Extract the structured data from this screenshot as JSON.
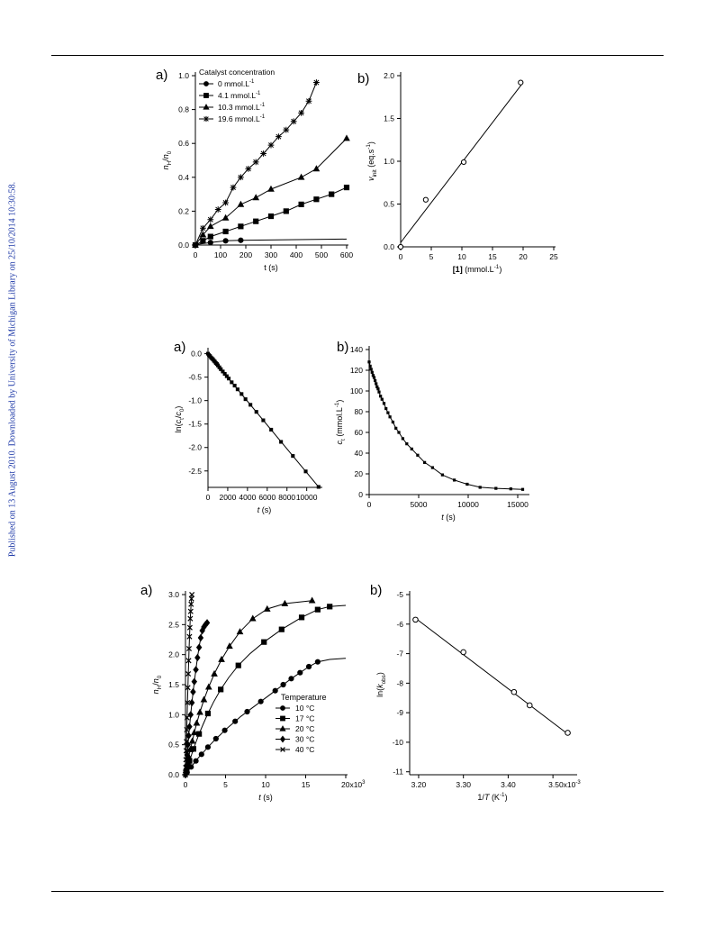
{
  "side_note": "Published on 13 August 2010. Downloaded by University of Michigan Library on 25/10/2014 10:30:58.",
  "chart_data": [
    {
      "id": "fig1a",
      "panel": "a)",
      "type": "line",
      "xlabel_html": "t (s)",
      "ylabel_html": "<tspan font-style='italic'>n</tspan><tspan font-size='70%' dy='3'>H</tspan><tspan dy='-3'>/</tspan><tspan font-style='italic'>n</tspan><tspan font-size='70%' dy='3'>0</tspan>",
      "xlim": [
        0,
        600
      ],
      "ylim": [
        0,
        1.0
      ],
      "xticks": [
        0,
        100,
        200,
        300,
        400,
        500,
        600
      ],
      "yticks": [
        0.0,
        0.2,
        0.4,
        0.6,
        0.8,
        1.0
      ],
      "xtick_labels": [
        "0",
        "100",
        "200",
        "300",
        "400",
        "500",
        "600"
      ],
      "ytick_labels": [
        "0.0",
        "0.2",
        "0.4",
        "0.6",
        "0.8",
        "1.0"
      ],
      "legend": {
        "title": "Catalyst concentration",
        "placement": "top-left"
      },
      "series": [
        {
          "name": "0 mmol.L",
          "unit_sup": "-1",
          "marker": "circle",
          "x": [
            0,
            10,
            60,
            120,
            180,
            600
          ],
          "y": [
            0.0,
            0.005,
            0.015,
            0.025,
            0.028,
            0.035
          ],
          "mx": [
            0,
            60,
            120,
            180
          ],
          "my": [
            0.0,
            0.015,
            0.025,
            0.028
          ]
        },
        {
          "name": "4.1 mmol.L",
          "unit_sup": "-1",
          "marker": "square",
          "x": [
            0,
            30,
            60,
            120,
            180,
            240,
            300,
            360,
            420,
            480,
            540,
            600
          ],
          "y": [
            0.0,
            0.025,
            0.05,
            0.08,
            0.11,
            0.14,
            0.17,
            0.2,
            0.24,
            0.27,
            0.3,
            0.34
          ]
        },
        {
          "name": "10.3 mmol.L",
          "unit_sup": "-1",
          "marker": "triangle",
          "x": [
            0,
            30,
            60,
            120,
            180,
            240,
            300,
            420,
            480,
            600
          ],
          "y": [
            0.0,
            0.06,
            0.11,
            0.16,
            0.24,
            0.28,
            0.33,
            0.4,
            0.45,
            0.63
          ]
        },
        {
          "name": "19.6 mmol.L",
          "unit_sup": "-1",
          "marker": "plus",
          "x": [
            0,
            30,
            60,
            90,
            120,
            150,
            180,
            210,
            240,
            270,
            300,
            330,
            360,
            390,
            420,
            450,
            480
          ],
          "y": [
            0.0,
            0.1,
            0.15,
            0.21,
            0.25,
            0.34,
            0.4,
            0.45,
            0.49,
            0.54,
            0.59,
            0.64,
            0.68,
            0.73,
            0.78,
            0.85,
            0.96
          ]
        }
      ]
    },
    {
      "id": "fig1b",
      "panel": "b)",
      "type": "scatter",
      "xlabel_html": "<tspan font-weight='bold'>[1]</tspan> (mmol.L<tspan font-size='70%' dy='-4'>-1</tspan><tspan dy='4'>)</tspan>",
      "ylabel_html": "<tspan font-style='italic'>v</tspan><tspan font-size='70%' dy='3'>init</tspan><tspan dy='-3'> (eq.s</tspan><tspan font-size='70%' dy='-4'>-1</tspan><tspan dy='4'>)</tspan>",
      "xlim": [
        0,
        25
      ],
      "ylim": [
        0,
        2.0
      ],
      "xticks": [
        0,
        5,
        10,
        15,
        20,
        25
      ],
      "yticks": [
        0.0,
        0.5,
        1.0,
        1.5,
        2.0
      ],
      "xtick_labels": [
        "0",
        "5",
        "10",
        "15",
        "20",
        "25"
      ],
      "ytick_labels": [
        "0.0",
        "0.5",
        "1.0",
        "1.5",
        "2.0"
      ],
      "fit": {
        "x": [
          0,
          20
        ],
        "y": [
          0.05,
          1.92
        ]
      },
      "series": [
        {
          "name": "",
          "marker": "open-circle",
          "x": [
            0,
            4.1,
            10.3,
            19.6
          ],
          "y": [
            0.0,
            0.55,
            0.99,
            1.92
          ]
        }
      ]
    },
    {
      "id": "fig2a",
      "panel": "a)",
      "type": "scatter",
      "xlabel_html": "<tspan font-style='italic'>t</tspan> (s)",
      "ylabel_html": "ln(<tspan font-style='italic'>c</tspan><tspan font-size='70%' dy='3'>t</tspan><tspan dy='-3'>/</tspan><tspan font-style='italic'>c</tspan><tspan font-size='70%' dy='3'>0</tspan><tspan dy='-3'>)</tspan>",
      "xlim": [
        0,
        11400
      ],
      "ylim": [
        -2.85,
        0.05
      ],
      "xticks": [
        0,
        2000,
        4000,
        6000,
        8000,
        10000
      ],
      "yticks": [
        0.0,
        -0.5,
        -1.0,
        -1.5,
        -2.0,
        -2.5
      ],
      "xtick_labels": [
        "0",
        "2000",
        "4000",
        "6000",
        "8000",
        "10000"
      ],
      "ytick_labels": [
        "0.0",
        "-0.5",
        "-1.0",
        "-1.5",
        "-2.0",
        "-2.5"
      ],
      "fit": {
        "x": [
          0,
          11200
        ],
        "y": [
          0.0,
          -2.84
        ]
      },
      "series": [
        {
          "name": "",
          "marker": "small-square",
          "x": [
            0,
            100,
            200,
            300,
            400,
            500,
            600,
            700,
            800,
            900,
            1000,
            1150,
            1300,
            1500,
            1700,
            1900,
            2100,
            2400,
            2700,
            3000,
            3400,
            3800,
            4300,
            4900,
            5600,
            6400,
            7400,
            8600,
            9900,
            11200
          ],
          "y": [
            0.0,
            -0.03,
            -0.05,
            -0.08,
            -0.1,
            -0.12,
            -0.15,
            -0.17,
            -0.2,
            -0.22,
            -0.25,
            -0.29,
            -0.33,
            -0.38,
            -0.43,
            -0.48,
            -0.53,
            -0.61,
            -0.68,
            -0.76,
            -0.86,
            -0.97,
            -1.09,
            -1.24,
            -1.42,
            -1.62,
            -1.88,
            -2.18,
            -2.51,
            -2.84
          ]
        }
      ]
    },
    {
      "id": "fig2b",
      "panel": "b)",
      "type": "line",
      "xlabel_html": "<tspan font-style='italic'>t</tspan> (s)",
      "ylabel_html": "<tspan font-style='italic'>c</tspan><tspan font-size='70%' dy='3'>t</tspan><tspan dy='-3'> (mmol.L</tspan><tspan font-size='70%' dy='-4'>-1</tspan><tspan dy='4'>)</tspan>",
      "xlim": [
        0,
        16000
      ],
      "ylim": [
        0,
        140
      ],
      "xticks": [
        0,
        5000,
        10000,
        15000
      ],
      "yticks": [
        0,
        20,
        40,
        60,
        80,
        100,
        120,
        140
      ],
      "xtick_labels": [
        "0",
        "5000",
        "10000",
        "15000"
      ],
      "ytick_labels": [
        "0",
        "20",
        "40",
        "60",
        "80",
        "100",
        "120",
        "140"
      ],
      "series": [
        {
          "name": "",
          "marker": "small-square",
          "x": [
            0,
            100,
            200,
            300,
            400,
            500,
            600,
            700,
            800,
            900,
            1000,
            1150,
            1300,
            1500,
            1700,
            1900,
            2100,
            2400,
            2700,
            3000,
            3400,
            3800,
            4300,
            4900,
            5600,
            6400,
            7400,
            8600,
            9900,
            11200,
            12800,
            14300,
            15500
          ],
          "y": [
            128,
            124,
            121,
            118,
            115,
            113,
            110,
            107,
            104,
            102,
            99,
            95,
            92,
            88,
            83,
            79,
            75,
            70,
            64,
            60,
            54,
            49,
            44,
            38,
            31,
            26,
            19,
            14,
            10,
            7,
            6,
            5.5,
            5
          ]
        }
      ]
    },
    {
      "id": "fig3a",
      "panel": "a)",
      "type": "line",
      "xlabel_html": "<tspan font-style='italic'>t</tspan> (s)",
      "ylabel_html": "<tspan font-style='italic'>n</tspan><tspan font-size='70%' dy='3'>H</tspan><tspan dy='-3'>/</tspan><tspan font-style='italic'>n</tspan><tspan font-size='70%' dy='3'>0</tspan>",
      "xlim": [
        0,
        20000
      ],
      "ylim": [
        0,
        3.0
      ],
      "xticks": [
        0,
        5000,
        10000,
        15000,
        20000
      ],
      "yticks": [
        0.0,
        0.5,
        1.0,
        1.5,
        2.0,
        2.5,
        3.0
      ],
      "xtick_labels": [
        "0",
        "5",
        "10",
        "15",
        "20x10"
      ],
      "xtick_last_sup": "3",
      "ytick_labels": [
        "0.0",
        "0.5",
        "1.0",
        "1.5",
        "2.0",
        "2.5",
        "3.0"
      ],
      "legend": {
        "title": "Temperature",
        "placement": "center-right"
      },
      "series": [
        {
          "name": "10 °C",
          "marker": "circle",
          "x": [
            0,
            200,
            400,
            700,
            1000,
            1300,
            1600,
            2000,
            2400,
            2800,
            3300,
            3800,
            4300,
            4900,
            5500,
            6200,
            6900,
            7700,
            8500,
            9400,
            10300,
            11200,
            12200,
            13200,
            14300,
            15400,
            16500,
            18000,
            20000
          ],
          "y": [
            0.0,
            0.04,
            0.08,
            0.13,
            0.18,
            0.23,
            0.28,
            0.34,
            0.4,
            0.46,
            0.53,
            0.6,
            0.66,
            0.74,
            0.81,
            0.89,
            0.97,
            1.05,
            1.13,
            1.22,
            1.31,
            1.4,
            1.5,
            1.6,
            1.7,
            1.8,
            1.88,
            1.92,
            1.94
          ],
          "mx": [
            200,
            700,
            1300,
            2000,
            2800,
            3800,
            4900,
            6200,
            7700,
            9400,
            11200,
            12200,
            13200,
            14300,
            15400,
            16500
          ],
          "my": [
            0.04,
            0.13,
            0.23,
            0.34,
            0.46,
            0.6,
            0.74,
            0.89,
            1.05,
            1.22,
            1.4,
            1.5,
            1.6,
            1.7,
            1.8,
            1.88
          ]
        },
        {
          "name": "17 °C",
          "marker": "square",
          "x": [
            0,
            150,
            300,
            500,
            750,
            1000,
            1300,
            1700,
            2200,
            2800,
            3500,
            4400,
            5400,
            6600,
            8000,
            9800,
            12000,
            14500,
            16500,
            18000,
            20000
          ],
          "y": [
            0.0,
            0.07,
            0.14,
            0.23,
            0.33,
            0.43,
            0.54,
            0.68,
            0.84,
            1.02,
            1.21,
            1.42,
            1.62,
            1.82,
            2.01,
            2.21,
            2.42,
            2.62,
            2.75,
            2.8,
            2.82
          ],
          "mx": [
            150,
            300,
            500,
            1000,
            1700,
            2800,
            4400,
            6600,
            9800,
            12000,
            14500,
            16500,
            18000
          ],
          "my": [
            0.07,
            0.14,
            0.23,
            0.43,
            0.68,
            1.02,
            1.42,
            1.82,
            2.21,
            2.42,
            2.62,
            2.75,
            2.8
          ]
        },
        {
          "name": "20 °C",
          "marker": "triangle",
          "x": [
            0,
            100,
            250,
            400,
            600,
            850,
            1100,
            1400,
            1800,
            2300,
            2900,
            3600,
            4500,
            5500,
            6800,
            8400,
            10200,
            12400,
            15800
          ],
          "y": [
            0.0,
            0.08,
            0.2,
            0.3,
            0.42,
            0.56,
            0.7,
            0.86,
            1.04,
            1.25,
            1.46,
            1.68,
            1.92,
            2.14,
            2.38,
            2.6,
            2.76,
            2.85,
            2.9
          ],
          "mx": [
            100,
            250,
            400,
            600,
            850,
            1100,
            1400,
            1800,
            2300,
            2900,
            3600,
            4500,
            5500,
            6800,
            8400,
            10200,
            12400,
            15800
          ],
          "my": [
            0.08,
            0.2,
            0.3,
            0.42,
            0.56,
            0.7,
            0.86,
            1.04,
            1.25,
            1.46,
            1.68,
            1.92,
            2.14,
            2.38,
            2.6,
            2.76,
            2.85,
            2.9
          ]
        },
        {
          "name": "30 °C",
          "marker": "diamond",
          "x": [
            0,
            50,
            100,
            200,
            300,
            400,
            500,
            650,
            800,
            950,
            1100,
            1300,
            1500,
            1700,
            1900,
            2100,
            2300,
            2500,
            2700
          ],
          "y": [
            0.0,
            0.07,
            0.15,
            0.33,
            0.5,
            0.65,
            0.8,
            1.0,
            1.2,
            1.38,
            1.55,
            1.75,
            1.95,
            2.12,
            2.28,
            2.4,
            2.46,
            2.5,
            2.53
          ]
        },
        {
          "name": "40 °C",
          "marker": "x",
          "x": [
            0,
            30,
            60,
            90,
            120,
            160,
            200,
            250,
            300,
            350,
            400,
            450,
            500,
            550,
            600,
            650,
            700,
            750,
            800
          ],
          "y": [
            0.0,
            0.12,
            0.25,
            0.4,
            0.55,
            0.75,
            0.95,
            1.2,
            1.45,
            1.68,
            1.9,
            2.1,
            2.3,
            2.45,
            2.6,
            2.72,
            2.84,
            2.93,
            3.0
          ]
        }
      ]
    },
    {
      "id": "fig3b",
      "panel": "b)",
      "type": "scatter",
      "xlabel_html": "1/<tspan font-style='italic'>T</tspan> (K<tspan font-size='70%' dy='-4'>-1</tspan><tspan dy='4'>)</tspan>",
      "ylabel_html": "ln(<tspan font-style='italic'>k</tspan><tspan font-size='70%' dy='3'>obs</tspan><tspan dy='-3'>)</tspan>",
      "xlim": [
        3.18,
        3.55
      ],
      "ylim": [
        -11.1,
        -5.0
      ],
      "xticks": [
        3.2,
        3.3,
        3.4,
        3.5
      ],
      "yticks": [
        -5,
        -6,
        -7,
        -8,
        -9,
        -10,
        -11
      ],
      "xtick_labels": [
        "3.20",
        "3.30",
        "3.40",
        "3.50x10"
      ],
      "xtick_last_sup": "-3",
      "ytick_labels": [
        "-5",
        "-6",
        "-7",
        "-8",
        "-9",
        "-10",
        "-11"
      ],
      "fit": {
        "x": [
          3.193,
          3.533
        ],
        "y": [
          -5.8,
          -9.72
        ]
      },
      "series": [
        {
          "name": "",
          "marker": "open-circle",
          "x": [
            3.193,
            3.3,
            3.413,
            3.448,
            3.533
          ],
          "y": [
            -5.85,
            -6.95,
            -8.3,
            -8.75,
            -9.68
          ]
        }
      ]
    }
  ]
}
